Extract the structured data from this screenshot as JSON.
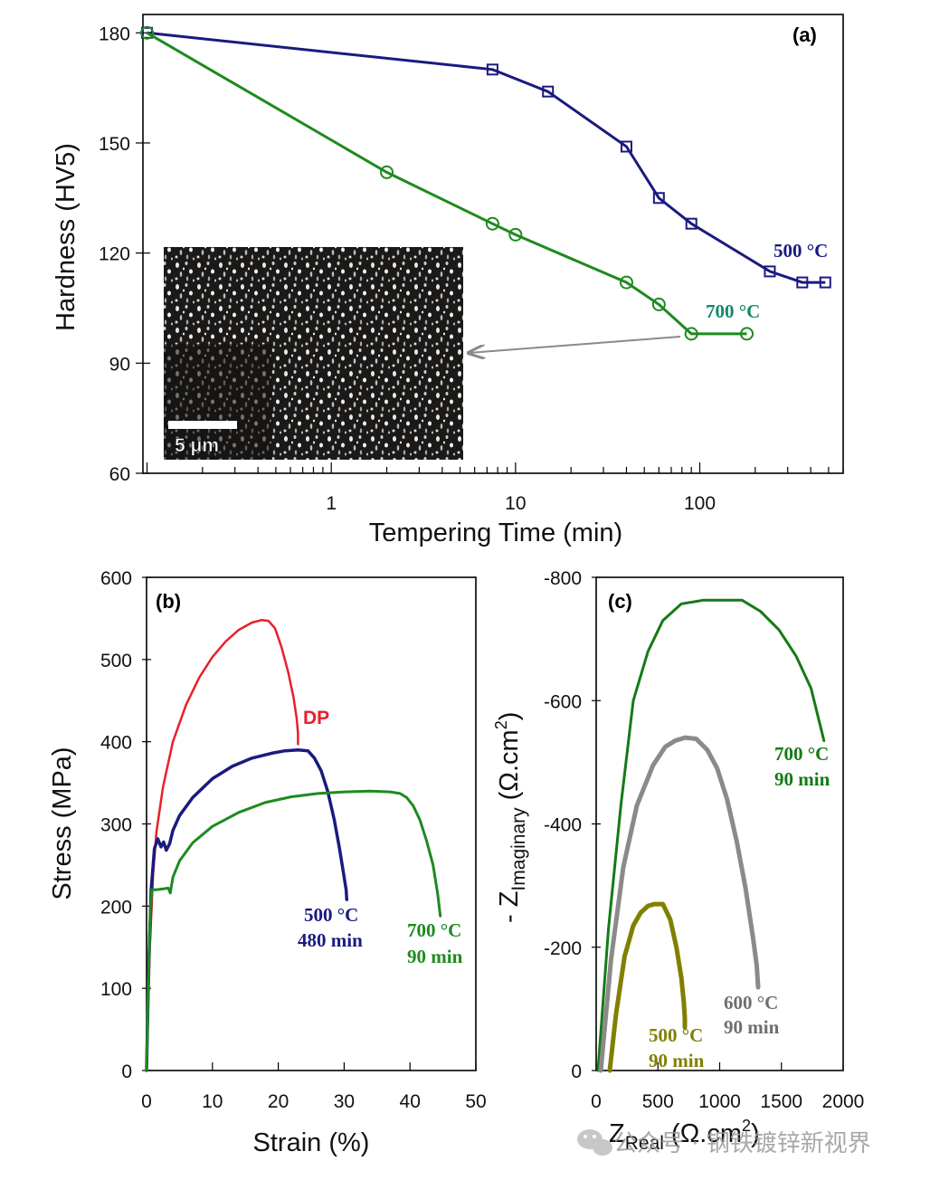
{
  "figure": {
    "watermark": "公众号 · 钢铁镀锌新视界"
  },
  "chart_data": [
    {
      "id": "a",
      "type": "line",
      "panel_label": "(a)",
      "title": "",
      "xlabel": "Tempering Time (min)",
      "ylabel": "Hardness (HV5)",
      "xscale": "log",
      "xlim": [
        0.095,
        600
      ],
      "ylim": [
        60,
        185
      ],
      "xticks": [
        1,
        10,
        100
      ],
      "xtick_labels": [
        "1",
        "10",
        "100"
      ],
      "yticks": [
        60,
        90,
        120,
        150,
        180
      ],
      "ytick_labels": [
        "60",
        "90",
        "120",
        "150",
        "180"
      ],
      "grid": false,
      "series": [
        {
          "name": "500 °C",
          "label": "500 °C",
          "color": "#1a1a80",
          "marker": "square",
          "x": [
            0.1,
            7.5,
            15,
            40,
            60,
            90,
            240,
            360,
            480
          ],
          "y": [
            180,
            170,
            164,
            149,
            135,
            128,
            115,
            112,
            112
          ]
        },
        {
          "name": "700 °C",
          "label": "700 °C",
          "color": "#1e8a1e",
          "label_color": "#138a6a",
          "marker": "circle",
          "x": [
            0.1,
            2,
            7.5,
            10,
            40,
            60,
            90,
            180
          ],
          "y": [
            180,
            142,
            128,
            125,
            112,
            106,
            98,
            98
          ]
        }
      ],
      "inset": {
        "description": "micrograph",
        "scale_bar": "5 μm",
        "arrow_from_point": {
          "series": "700 °C",
          "x": 90,
          "y": 98
        }
      }
    },
    {
      "id": "b",
      "type": "line",
      "panel_label": "(b)",
      "title": "",
      "xlabel": "Strain (%)",
      "ylabel": "Stress (MPa)",
      "xlim": [
        0,
        50
      ],
      "ylim": [
        0,
        600
      ],
      "xticks": [
        0,
        10,
        20,
        30,
        40,
        50
      ],
      "xtick_labels": [
        "0",
        "10",
        "20",
        "30",
        "40",
        "50"
      ],
      "yticks": [
        0,
        100,
        200,
        300,
        400,
        500,
        600
      ],
      "ytick_labels": [
        "0",
        "100",
        "200",
        "300",
        "400",
        "500",
        "600"
      ],
      "grid": false,
      "series": [
        {
          "name": "DP",
          "label_lines": [
            "DP"
          ],
          "color": "#e8202a",
          "x": [
            0,
            0.5,
            1.0,
            1.5,
            2.5,
            4,
            6,
            8,
            10,
            12,
            14,
            16,
            17.5,
            18.5,
            19.5,
            20.5,
            21.5,
            22.3,
            22.8,
            23.0,
            23.0
          ],
          "y": [
            0,
            150,
            240,
            290,
            345,
            400,
            445,
            478,
            503,
            522,
            536,
            545,
            548,
            547,
            538,
            515,
            485,
            455,
            428,
            410,
            397
          ]
        },
        {
          "name": "500 °C 480 min",
          "label_lines": [
            "500 °C",
            "480 min"
          ],
          "color": "#1a1a80",
          "x": [
            0,
            0.3,
            0.7,
            1.2,
            1.7,
            2.2,
            2.6,
            3.0,
            3.5,
            4,
            5,
            7,
            10,
            13,
            16,
            19,
            21,
            23,
            24.5,
            25.5,
            26.5,
            27.5,
            28.5,
            29.3,
            29.9,
            30.3,
            30.4
          ],
          "y": [
            0,
            120,
            220,
            270,
            282,
            272,
            278,
            268,
            276,
            292,
            310,
            332,
            355,
            370,
            380,
            386,
            389,
            390,
            389,
            380,
            365,
            340,
            305,
            270,
            240,
            220,
            208
          ]
        },
        {
          "name": "700 °C 90 min",
          "label_lines": [
            "700 °C",
            "90 min"
          ],
          "color": "#1e8a1e",
          "x": [
            0,
            0.3,
            0.6,
            0.8,
            1.5,
            2.5,
            3.3,
            3.6,
            4,
            5,
            7,
            10,
            14,
            18,
            22,
            26,
            30,
            34,
            37,
            38.5,
            39.5,
            40.5,
            41.5,
            42.5,
            43.5,
            44.2,
            44.6
          ],
          "y": [
            0,
            120,
            200,
            220,
            220,
            221,
            222,
            216,
            235,
            255,
            277,
            297,
            314,
            326,
            333,
            337,
            339,
            340,
            339,
            337,
            332,
            322,
            305,
            280,
            250,
            215,
            188
          ]
        }
      ]
    },
    {
      "id": "c",
      "type": "line",
      "panel_label": "(c)",
      "title": "",
      "xlabel": "Z_Real (Ω.cm²)",
      "xlabel_main": "Z",
      "xlabel_sub": "Real",
      "xlabel_unit": "(Ω.cm",
      "xlabel_sup": "2",
      "xlabel_close": ")",
      "ylabel": "- Z_Imaginary (Ω.cm²)",
      "ylabel_main": "- Z",
      "ylabel_sub": "Imaginary",
      "ylabel_unit": "(Ω.cm",
      "ylabel_sup": "2",
      "ylabel_close": ")",
      "xlim": [
        0,
        2000
      ],
      "ylim": [
        0,
        -800
      ],
      "xticks": [
        0,
        500,
        1000,
        1500,
        2000
      ],
      "xtick_labels": [
        "0",
        "500",
        "1000",
        "1500",
        "2000"
      ],
      "yticks": [
        0,
        -200,
        -400,
        -600,
        -800
      ],
      "ytick_labels": [
        "0",
        "-200",
        "-400",
        "-600",
        "-800"
      ],
      "grid": false,
      "series": [
        {
          "name": "700 °C 90 min",
          "label_lines": [
            "700 °C",
            "90 min"
          ],
          "color": "#157a15",
          "x": [
            15,
            100,
            200,
            300,
            420,
            540,
            690,
            870,
            1030,
            1180,
            1330,
            1480,
            1620,
            1740,
            1845
          ],
          "y": [
            0,
            -230,
            -430,
            -600,
            -680,
            -730,
            -757,
            -763,
            -763,
            -763,
            -745,
            -715,
            -672,
            -620,
            -535
          ]
        },
        {
          "name": "600 °C 90 min",
          "label_lines": [
            "600 °C",
            "90 min"
          ],
          "color": "#8a8a8a",
          "x": [
            37,
            120,
            220,
            330,
            460,
            560,
            640,
            720,
            810,
            900,
            980,
            1060,
            1140,
            1210,
            1270,
            1300,
            1311
          ],
          "y": [
            0,
            -180,
            -330,
            -430,
            -495,
            -525,
            -535,
            -540,
            -538,
            -520,
            -490,
            -440,
            -370,
            -295,
            -215,
            -170,
            -135
          ]
        },
        {
          "name": "500 °C 90 min",
          "label_lines": [
            "500 °C",
            "90 min"
          ],
          "color": "#808000",
          "x": [
            110,
            160,
            230,
            300,
            360,
            420,
            470,
            540,
            600,
            650,
            690,
            710,
            718,
            718
          ],
          "y": [
            0,
            -90,
            -185,
            -235,
            -256,
            -267,
            -270,
            -270,
            -245,
            -200,
            -150,
            -110,
            -85,
            -70
          ]
        }
      ]
    }
  ]
}
